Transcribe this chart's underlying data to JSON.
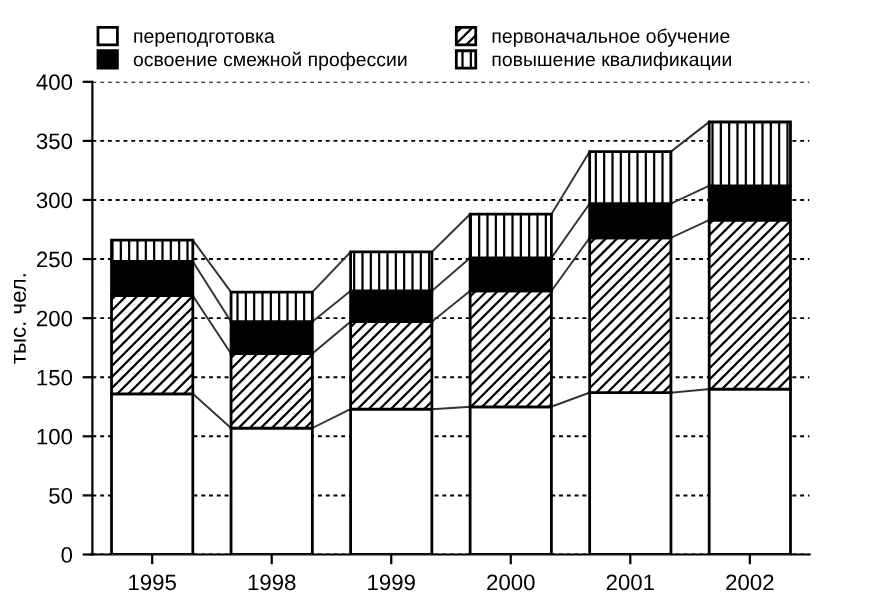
{
  "chart_data": {
    "type": "bar",
    "stacked": true,
    "ylabel": "тыс. чел.",
    "categories": [
      "1995",
      "1998",
      "1999",
      "2000",
      "2001",
      "2002"
    ],
    "series": [
      {
        "name": "переподготовка",
        "color": "#ffffff",
        "values": [
          136,
          107,
          123,
          125,
          137,
          140
        ]
      },
      {
        "name": "первоначальное обучение",
        "color": "#000000",
        "values": [
          83,
          63,
          74,
          98,
          131,
          143
        ]
      },
      {
        "name": "освоение смежной профессии",
        "color": "#000000",
        "values": [
          29,
          27,
          26,
          28,
          29,
          29
        ]
      },
      {
        "name": "повышение квалификации",
        "color": "#000000",
        "values": [
          18,
          25,
          33,
          37,
          44,
          54
        ]
      }
    ],
    "ylim": [
      0,
      400
    ],
    "yticks": [
      0,
      50,
      100,
      150,
      200,
      250,
      300,
      350,
      400
    ],
    "grid": "y",
    "legend": "top"
  }
}
